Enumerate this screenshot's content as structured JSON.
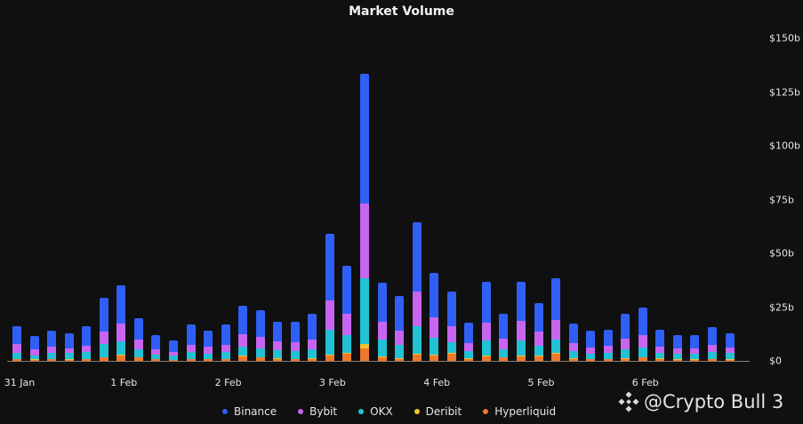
{
  "title": "Market Volume",
  "watermark": "@Crypto Bull 3",
  "colors": {
    "Binance": "#2f5ff5",
    "Bybit": "#c765f0",
    "OKX": "#22c1d4",
    "Deribit": "#f2c12e",
    "Hyperliquid": "#f0782a"
  },
  "legend": [
    {
      "label": "Binance",
      "color": "#2f5ff5"
    },
    {
      "label": "Bybit",
      "color": "#c765f0"
    },
    {
      "label": "OKX",
      "color": "#22c1d4"
    },
    {
      "label": "Deribit",
      "color": "#f2c12e"
    },
    {
      "label": "Hyperliquid",
      "color": "#f0782a"
    }
  ],
  "y_ticks": [
    "$0",
    "$25b",
    "$50b",
    "$75b",
    "$100b",
    "$125b",
    "$150b"
  ],
  "x_ticks": [
    {
      "label": "31 Jan",
      "bar_index": 0
    },
    {
      "label": "1 Feb",
      "bar_index": 6
    },
    {
      "label": "2 Feb",
      "bar_index": 12
    },
    {
      "label": "3 Feb",
      "bar_index": 18
    },
    {
      "label": "4 Feb",
      "bar_index": 24
    },
    {
      "label": "5 Feb",
      "bar_index": 30
    },
    {
      "label": "6 Feb",
      "bar_index": 36
    }
  ],
  "chart_data": {
    "type": "bar",
    "stacked": true,
    "title": "Market Volume",
    "xlabel": "",
    "ylabel": "",
    "ylim": [
      0,
      150
    ],
    "y_unit": "USD billions",
    "y_axis_position": "right",
    "grid": false,
    "legend_position": "bottom",
    "tick_labels_x": [
      "31 Jan",
      "1 Feb",
      "2 Feb",
      "3 Feb",
      "4 Feb",
      "5 Feb",
      "6 Feb"
    ],
    "categories": [
      "31 Jan 00:00",
      "31 Jan 04:00",
      "31 Jan 08:00",
      "31 Jan 12:00",
      "31 Jan 16:00",
      "31 Jan 20:00",
      "1 Feb 00:00",
      "1 Feb 04:00",
      "1 Feb 08:00",
      "1 Feb 12:00",
      "1 Feb 16:00",
      "1 Feb 20:00",
      "2 Feb 00:00",
      "2 Feb 04:00",
      "2 Feb 08:00",
      "2 Feb 12:00",
      "2 Feb 16:00",
      "2 Feb 20:00",
      "3 Feb 00:00",
      "3 Feb 04:00",
      "3 Feb 08:00",
      "3 Feb 12:00",
      "3 Feb 16:00",
      "3 Feb 20:00",
      "4 Feb 00:00",
      "4 Feb 04:00",
      "4 Feb 08:00",
      "4 Feb 12:00",
      "4 Feb 16:00",
      "4 Feb 20:00",
      "5 Feb 00:00",
      "5 Feb 04:00",
      "5 Feb 08:00",
      "5 Feb 12:00",
      "5 Feb 16:00",
      "5 Feb 20:00",
      "6 Feb 00:00",
      "6 Feb 04:00",
      "6 Feb 08:00",
      "6 Feb 12:00",
      "6 Feb 16:00",
      "6 Feb 20:00"
    ],
    "totals": [
      16.1,
      11.6,
      14.0,
      12.8,
      16.1,
      29.3,
      35.0,
      19.8,
      12.0,
      9.5,
      16.9,
      14.0,
      16.9,
      25.6,
      23.5,
      18.2,
      18.2,
      21.9,
      59.0,
      44.2,
      133.5,
      36.4,
      30.2,
      64.5,
      40.9,
      32.2,
      17.8,
      36.8,
      21.9,
      36.8,
      26.9,
      38.4,
      17.4,
      14.0,
      14.5,
      21.9,
      24.8,
      14.5,
      12.0,
      12.0,
      15.7,
      12.8
    ],
    "series": [
      {
        "name": "Hyperliquid",
        "values": [
          0.8,
          0.6,
          0.8,
          0.6,
          0.8,
          1.5,
          2.5,
          1.5,
          0.7,
          0.5,
          0.8,
          0.7,
          0.8,
          2.0,
          1.5,
          1.0,
          0.8,
          1.0,
          2.5,
          3.3,
          5.8,
          1.7,
          1.0,
          2.9,
          2.5,
          3.3,
          1.0,
          2.0,
          1.5,
          2.0,
          2.0,
          3.3,
          1.0,
          0.7,
          0.8,
          1.0,
          1.5,
          1.0,
          0.6,
          0.6,
          0.8,
          0.6
        ]
      },
      {
        "name": "Deribit",
        "values": [
          0.2,
          0.1,
          0.2,
          0.1,
          0.2,
          0.3,
          0.4,
          0.2,
          0.1,
          0.1,
          0.2,
          0.1,
          0.2,
          0.3,
          0.2,
          0.2,
          0.2,
          0.2,
          0.4,
          0.5,
          2.0,
          0.3,
          0.2,
          0.5,
          0.4,
          0.4,
          0.2,
          0.3,
          0.2,
          0.3,
          0.3,
          0.5,
          0.2,
          0.1,
          0.2,
          0.2,
          0.3,
          0.2,
          0.1,
          0.1,
          0.2,
          0.1
        ]
      },
      {
        "name": "OKX",
        "values": [
          2.7,
          1.8,
          2.7,
          3.0,
          3.1,
          6.1,
          6.1,
          3.7,
          2.1,
          1.9,
          3.1,
          2.5,
          3.1,
          4.3,
          4.1,
          3.8,
          3.5,
          4.2,
          11.6,
          8.2,
          30.6,
          7.9,
          6.2,
          12.7,
          7.8,
          5.0,
          3.3,
          7.2,
          3.7,
          7.2,
          4.7,
          6.1,
          3.3,
          2.5,
          2.7,
          4.2,
          4.4,
          2.5,
          2.6,
          2.6,
          3.1,
          3.0
        ]
      },
      {
        "name": "Bybit",
        "values": [
          4.2,
          2.9,
          2.9,
          2.1,
          2.9,
          5.7,
          8.4,
          4.5,
          2.5,
          1.6,
          3.3,
          3.3,
          3.3,
          5.8,
          5.4,
          4.1,
          4.2,
          4.5,
          13.6,
          9.9,
          34.6,
          8.3,
          6.6,
          16.1,
          9.5,
          7.4,
          3.8,
          8.3,
          4.9,
          9.1,
          6.6,
          9.1,
          3.8,
          2.9,
          3.3,
          4.9,
          5.8,
          2.9,
          2.5,
          2.5,
          3.3,
          2.5
        ]
      },
      {
        "name": "Binance",
        "values": [
          8.2,
          6.2,
          7.4,
          7.0,
          9.1,
          15.7,
          17.6,
          9.9,
          6.6,
          5.4,
          9.5,
          7.4,
          9.5,
          13.2,
          12.3,
          9.1,
          9.5,
          12.0,
          30.9,
          22.3,
          60.5,
          18.2,
          16.2,
          32.3,
          20.7,
          16.1,
          9.5,
          19.0,
          11.6,
          18.2,
          13.3,
          19.4,
          9.1,
          7.8,
          7.5,
          11.6,
          12.8,
          7.9,
          6.2,
          6.2,
          8.3,
          6.6
        ]
      }
    ]
  }
}
